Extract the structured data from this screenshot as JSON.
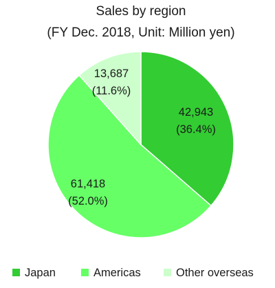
{
  "chart_data": {
    "type": "pie",
    "title": "Sales by region",
    "subtitle": "(FY Dec. 2018, Unit: Million yen)",
    "categories": [
      "Japan",
      "Americas",
      "Other overseas"
    ],
    "values": [
      42943,
      61418,
      13687
    ],
    "value_labels": [
      "42,943",
      "61,418",
      "13,687"
    ],
    "percent_labels": [
      "(36.4%)",
      "(52.0%)",
      "(11.6%)"
    ],
    "colors": [
      "#33cc33",
      "#66ff66",
      "#ccffcc"
    ],
    "legend": {
      "position": "bottom",
      "entries": [
        "Japan",
        "Americas",
        "Other overseas"
      ]
    }
  }
}
